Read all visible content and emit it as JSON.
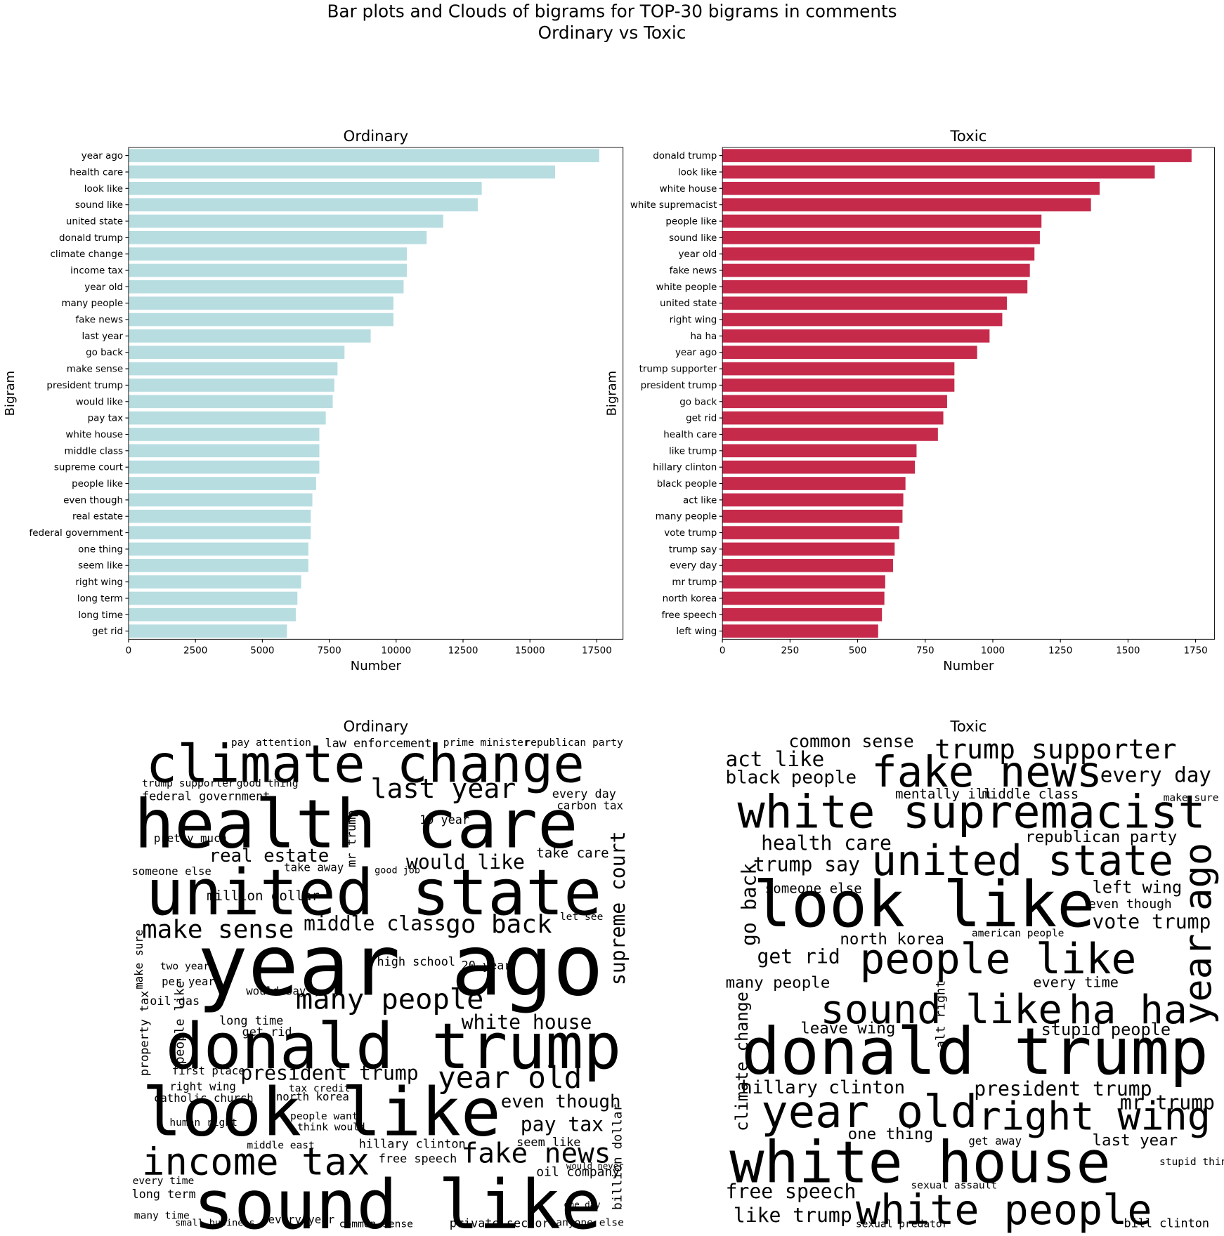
{
  "title": [
    "Bar plots and Clouds of bigrams for TOP-30 bigrams in comments",
    "Ordinary vs Toxic"
  ],
  "chart_data": [
    {
      "type": "barh",
      "title": "Ordinary",
      "xlabel": "Number",
      "ylabel": "Bigram",
      "color": "#b7dde1",
      "categories": [
        "year ago",
        "health care",
        "look like",
        "sound like",
        "united state",
        "donald trump",
        "climate change",
        "income tax",
        "year old",
        "many people",
        "fake news",
        "last year",
        "go back",
        "make sense",
        "president trump",
        "would like",
        "pay tax",
        "white house",
        "middle class",
        "supreme court",
        "people like",
        "even though",
        "real estate",
        "federal government",
        "one thing",
        "seem like",
        "right wing",
        "long term",
        "long time",
        "get rid"
      ],
      "values": [
        17590,
        15940,
        13200,
        13050,
        11760,
        11140,
        10400,
        10400,
        10280,
        9900,
        9900,
        9050,
        8070,
        7810,
        7690,
        7630,
        7370,
        7130,
        7130,
        7130,
        7010,
        6870,
        6810,
        6810,
        6720,
        6720,
        6450,
        6310,
        6250,
        5920
      ],
      "xlim": [
        0,
        18480
      ],
      "xticks": [
        0,
        2500,
        5000,
        7500,
        10000,
        12500,
        15000,
        17500
      ]
    },
    {
      "type": "barh",
      "title": "Toxic",
      "xlabel": "Number",
      "ylabel": "Bigram",
      "color": "#c62a4b",
      "categories": [
        "donald trump",
        "look like",
        "white house",
        "white supremacist",
        "people like",
        "sound like",
        "year old",
        "fake news",
        "white people",
        "united state",
        "right wing",
        "ha ha",
        "year ago",
        "trump supporter",
        "president trump",
        "go back",
        "get rid",
        "health care",
        "like trump",
        "hillary clinton",
        "black people",
        "act like",
        "many people",
        "vote trump",
        "trump say",
        "every day",
        "mr trump",
        "north korea",
        "free speech",
        "left wing"
      ],
      "values": [
        1735,
        1599,
        1395,
        1363,
        1180,
        1174,
        1154,
        1137,
        1128,
        1052,
        1035,
        988,
        942,
        858,
        858,
        831,
        817,
        797,
        718,
        712,
        677,
        669,
        666,
        654,
        637,
        631,
        602,
        599,
        590,
        576
      ],
      "xlim": [
        0,
        1820
      ],
      "xticks": [
        0,
        250,
        500,
        750,
        1000,
        1250,
        1500,
        1750
      ]
    },
    {
      "type": "wordcloud",
      "title": "Ordinary",
      "words": [
        "climate change",
        "health care",
        "united state",
        "year ago",
        "donald trump",
        "look like",
        "sound like",
        "income tax",
        "many people",
        "last year",
        "make sense",
        "middle class",
        "go back",
        "year old",
        "fake news",
        "real estate",
        "would like",
        "president trump",
        "white house",
        "pay tax",
        "even though",
        "supreme court",
        "people like",
        "federal government",
        "billion dollar",
        "property tax",
        "take care",
        "carbon tax",
        "every day",
        "million dollar",
        "oil gas",
        "long time",
        "get rid",
        "first place",
        "right wing",
        "north korea",
        "catholic church",
        "human right",
        "hillary clinton",
        "free speech",
        "oil company",
        "seem like",
        "long term",
        "every time",
        "many time",
        "common sense",
        "private sector",
        "anyone else",
        "small business",
        "every year",
        "high school",
        "20 year",
        "10 year",
        "someone else",
        "pretty much",
        "two year",
        "per year",
        "take away",
        "good job",
        "let see",
        "people want",
        "think would",
        "middle east",
        "would never",
        "one day",
        "tax credit",
        "would say",
        "pay attention",
        "law enforcement",
        "prime minister",
        "republican party",
        "trump supporter",
        "good thing",
        "mr trump",
        "make sure"
      ]
    },
    {
      "type": "wordcloud",
      "title": "Toxic",
      "words": [
        "trump supporter",
        "fake news",
        "white supremacist",
        "united state",
        "look like",
        "people like",
        "sound like",
        "ha ha",
        "year ago",
        "donald trump",
        "year old",
        "right wing",
        "white house",
        "white people",
        "free speech",
        "like trump",
        "hillary clinton",
        "president trump",
        "black people",
        "act like",
        "common sense",
        "health care",
        "trump say",
        "republican party",
        "every day",
        "left wing",
        "vote trump",
        "north korea",
        "get rid",
        "many people",
        "leave wing",
        "stupid people",
        "mr trump",
        "last year",
        "one thing",
        "get away",
        "bill clinton",
        "sexual predator",
        "mentally ill",
        "middle class",
        "someone else",
        "every time",
        "go back",
        "climate change",
        "alt right",
        "make sure",
        "even though",
        "american people",
        "stupid thing",
        "sexual assault"
      ]
    }
  ]
}
